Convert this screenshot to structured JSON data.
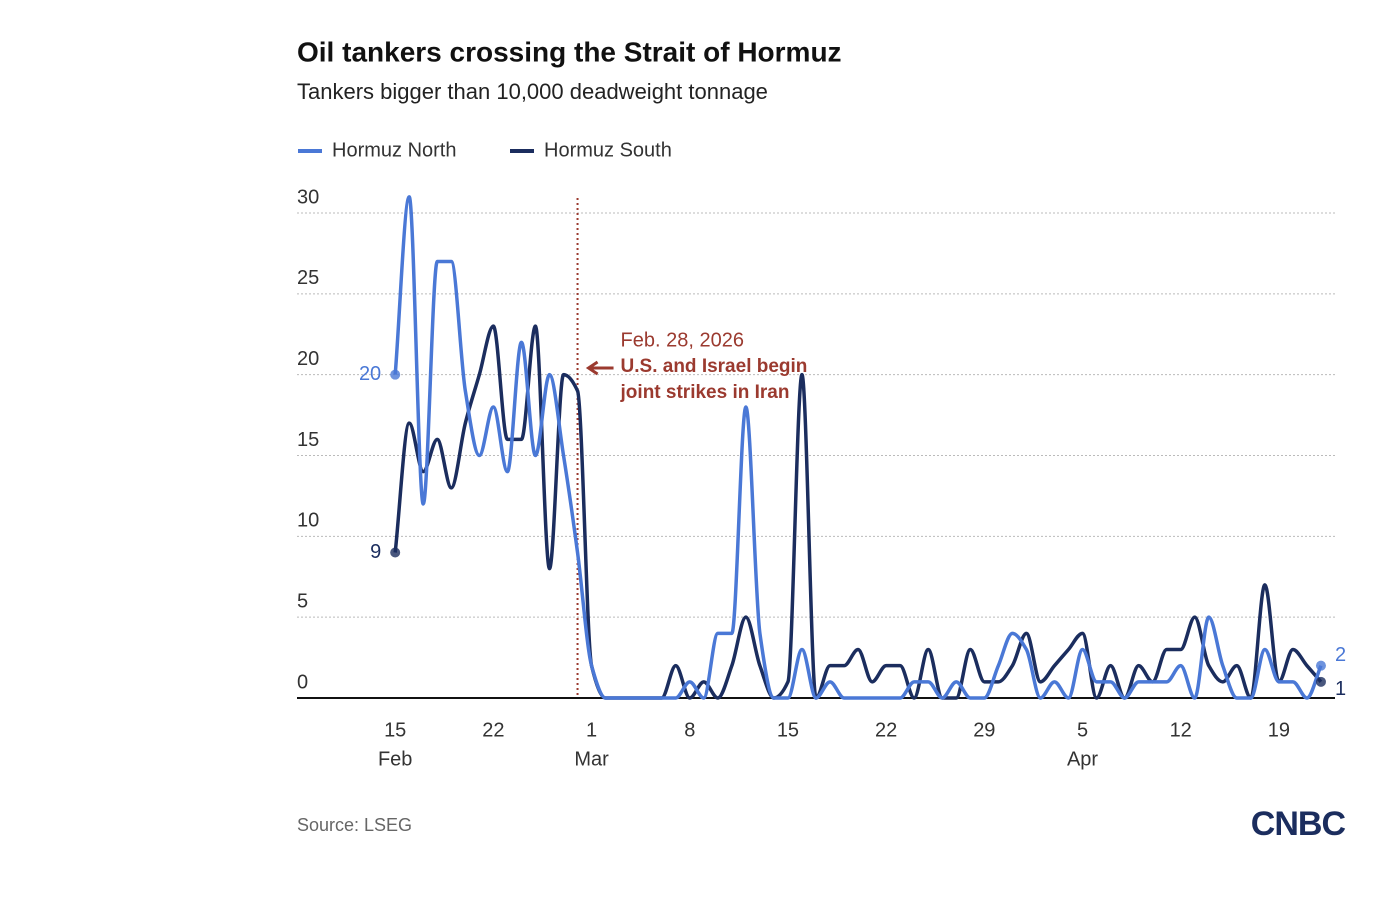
{
  "chart_data": {
    "type": "line",
    "title": "Oil tankers crossing the Strait of Hormuz",
    "subtitle": "Tankers bigger than 10,000 deadweight tonnage",
    "source": "Source: LSEG",
    "logo": "CNBC",
    "x_start": "2026-02-15",
    "xlim": [
      "2026-02-08",
      "2026-04-23"
    ],
    "ylim": [
      0,
      30
    ],
    "yticks": [
      0,
      5,
      10,
      15,
      20,
      25,
      30
    ],
    "xticks": [
      {
        "value": "2026-02-15",
        "label": "15"
      },
      {
        "value": "2026-02-22",
        "label": "22"
      },
      {
        "value": "2026-03-01",
        "label": "1"
      },
      {
        "value": "2026-03-08",
        "label": "8"
      },
      {
        "value": "2026-03-15",
        "label": "15"
      },
      {
        "value": "2026-03-22",
        "label": "22"
      },
      {
        "value": "2026-03-29",
        "label": "29"
      },
      {
        "value": "2026-04-05",
        "label": "5"
      },
      {
        "value": "2026-04-12",
        "label": "12"
      },
      {
        "value": "2026-04-19",
        "label": "19"
      }
    ],
    "xtick_months": [
      {
        "value": "2026-02-15",
        "label": "Feb"
      },
      {
        "value": "2026-03-01",
        "label": "Mar"
      },
      {
        "value": "2026-04-05",
        "label": "Apr"
      }
    ],
    "grid": true,
    "annotation": {
      "x": "2026-02-28",
      "date_label": "Feb. 28, 2026",
      "text": [
        "U.S. and Israel begin",
        "joint strikes in Iran"
      ],
      "color": "#9b3a2f"
    },
    "series": [
      {
        "name": "Hormuz North",
        "color": "#4a78d6",
        "values": [
          20,
          31,
          12,
          27,
          27,
          19,
          15,
          18,
          14,
          22,
          15,
          20,
          15,
          9,
          2,
          0,
          0,
          0,
          0,
          0,
          0,
          1,
          0,
          4,
          4,
          18,
          4,
          0,
          0,
          3,
          0,
          1,
          0,
          0,
          0,
          0,
          0,
          1,
          1,
          0,
          1,
          0,
          0,
          2,
          4,
          3,
          0,
          1,
          0,
          3,
          1,
          1,
          0,
          1,
          1,
          1,
          2,
          0,
          5,
          2,
          0,
          0,
          3,
          1,
          1,
          0,
          2
        ]
      },
      {
        "name": "Hormuz South",
        "color": "#1b2d5e",
        "values": [
          9,
          17,
          14,
          16,
          13,
          17,
          20,
          23,
          16,
          16,
          23,
          8,
          20,
          19,
          2,
          0,
          0,
          0,
          0,
          0,
          2,
          0,
          1,
          0,
          2,
          5,
          2,
          0,
          1,
          20,
          0,
          2,
          2,
          3,
          1,
          2,
          2,
          0,
          3,
          0,
          0,
          3,
          1,
          1,
          2,
          4,
          1,
          2,
          3,
          4,
          0,
          2,
          0,
          2,
          1,
          3,
          3,
          5,
          2,
          1,
          2,
          0,
          7,
          1,
          3,
          2,
          1
        ]
      }
    ]
  }
}
